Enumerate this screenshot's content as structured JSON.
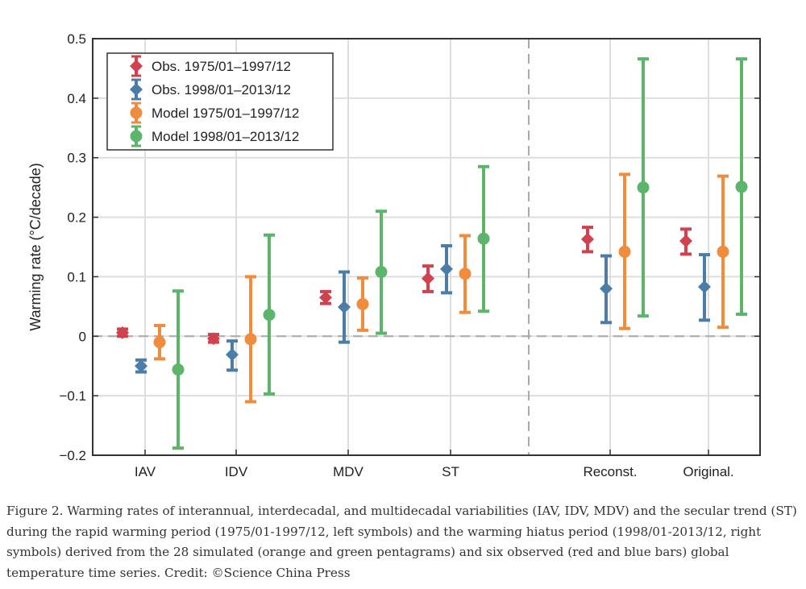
{
  "chart_data": {
    "type": "errorbar",
    "ylabel": "Warming rate (°C/decade)",
    "ylim": [
      -0.2,
      0.5
    ],
    "yticks": [
      -0.2,
      -0.1,
      0,
      0.1,
      0.2,
      0.3,
      0.4,
      0.5
    ],
    "ytick_labels": [
      "−0.2",
      "−0.1",
      "0",
      "0.1",
      "0.2",
      "0.3",
      "0.4",
      "0.5"
    ],
    "categories": [
      "IAV",
      "IDV",
      "MDV",
      "ST",
      "Reconst.",
      "Original."
    ],
    "grid": true,
    "zero_line": "dashed",
    "separator": "dashed vertical line between ST and Reconst.",
    "legend_position": "top-left",
    "series": [
      {
        "name": "Obs. 1975/01–1997/12",
        "color": "#d1424f",
        "marker": "diamond",
        "values": [
          0.006,
          -0.004,
          0.065,
          0.097,
          0.163,
          0.16
        ],
        "low": [
          0.0,
          -0.01,
          0.055,
          0.075,
          0.142,
          0.138
        ],
        "high": [
          0.012,
          0.003,
          0.075,
          0.118,
          0.183,
          0.18
        ]
      },
      {
        "name": "Obs. 1998/01–2013/12",
        "color": "#4a7ea8",
        "marker": "diamond",
        "values": [
          -0.05,
          -0.031,
          0.049,
          0.113,
          0.08,
          0.083
        ],
        "low": [
          -0.06,
          -0.057,
          -0.01,
          0.073,
          0.023,
          0.027
        ],
        "high": [
          -0.04,
          -0.008,
          0.108,
          0.152,
          0.135,
          0.137
        ]
      },
      {
        "name": "Model 1975/01–1997/12",
        "color": "#f08c3c",
        "marker": "circle",
        "values": [
          -0.01,
          -0.005,
          0.054,
          0.105,
          0.142,
          0.142
        ],
        "low": [
          -0.038,
          -0.11,
          0.01,
          0.04,
          0.013,
          0.015
        ],
        "high": [
          0.018,
          0.1,
          0.098,
          0.169,
          0.272,
          0.269
        ]
      },
      {
        "name": "Model 1998/01–2013/12",
        "color": "#5cb56a",
        "marker": "circle",
        "values": [
          -0.056,
          0.036,
          0.108,
          0.164,
          0.25,
          0.251
        ],
        "low": [
          -0.188,
          -0.097,
          0.005,
          0.042,
          0.034,
          0.037
        ],
        "high": [
          0.076,
          0.17,
          0.21,
          0.285,
          0.466,
          0.466
        ]
      }
    ]
  },
  "caption": "Figure 2. Warming rates of interannual, interdecadal, and multidecadal variabilities (IAV, IDV, MDV) and the secular trend (ST) during the rapid warming period (1975/01-1997/12, left symbols) and the warming hiatus period (1998/01-2013/12, right symbols) derived from the 28 simulated (orange and green pentagrams) and six observed (red and blue bars) global temperature time series. Credit: ©Science China Press"
}
